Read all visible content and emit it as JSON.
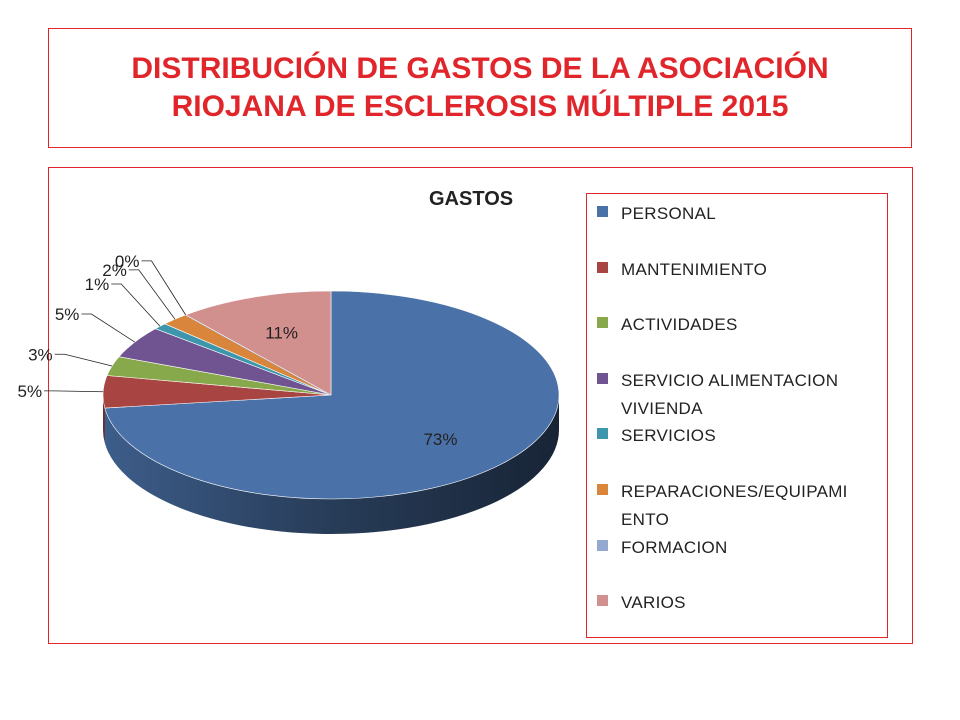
{
  "slide": {
    "title": "DISTRIBUCIÓN DE GASTOS DE LA ASOCIACIÓN RIOJANA DE ESCLEROSIS MÚLTIPLE 2015"
  },
  "chart_data": {
    "type": "pie",
    "title": "GASTOS",
    "three_d": true,
    "legend_position": "right",
    "categories": [
      "PERSONAL",
      "MANTENIMIENTO",
      "ACTIVIDADES",
      "SERVICIO ALIMENTACION VIVIENDA",
      "SERVICIOS",
      "REPARACIONES/EQUIPAMIENTO",
      "FORMACION",
      "VARIOS"
    ],
    "legend_labels": [
      "PERSONAL",
      "MANTENIMIENTO",
      "ACTIVIDADES",
      "SERVICIO ALIMENTACION\nVIVIENDA",
      "SERVICIOS",
      "REPARACIONES/EQUIPAMI\nENTO",
      "FORMACION",
      "VARIOS"
    ],
    "values": [
      73,
      5,
      3,
      5,
      1,
      2,
      0,
      11
    ],
    "data_labels": [
      "73%",
      "5%",
      "3%",
      "5%",
      "1%",
      "2%",
      "0%",
      "11%"
    ],
    "colors": [
      "#4a72a8",
      "#a84442",
      "#87a94b",
      "#6f5491",
      "#3e96ad",
      "#d9853b",
      "#93a9cf",
      "#d18f8d"
    ]
  }
}
